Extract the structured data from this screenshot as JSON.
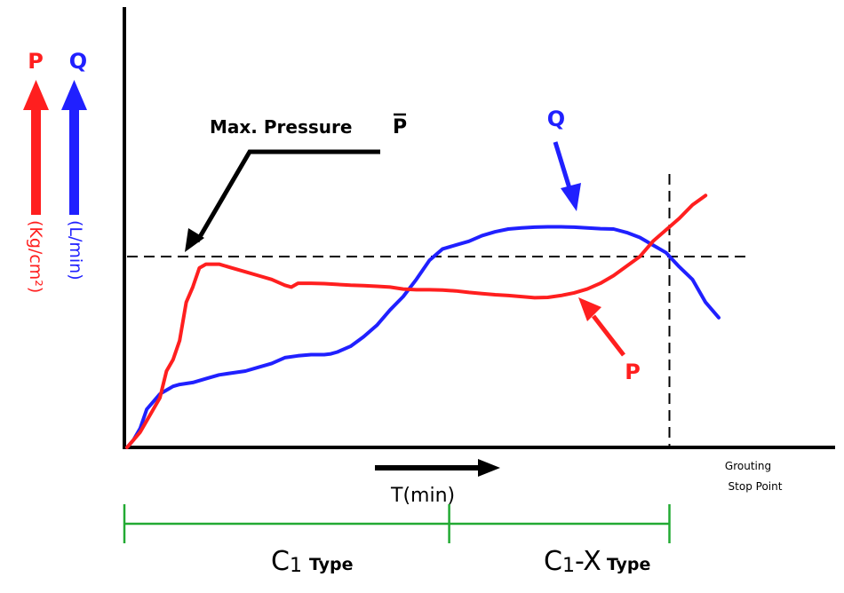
{
  "chart_data": {
    "type": "line",
    "title": "",
    "xlabel": "T(min)",
    "x_range": [
      0,
      100
    ],
    "y_range": [
      0,
      100
    ],
    "series": [
      {
        "name": "Q",
        "unit_label": "(L/min)",
        "color": "#2020ff",
        "points": [
          [
            0,
            0
          ],
          [
            1,
            2
          ],
          [
            2,
            5
          ],
          [
            3,
            10
          ],
          [
            4,
            12
          ],
          [
            5,
            14
          ],
          [
            6,
            15
          ],
          [
            7,
            16
          ],
          [
            8,
            16.5
          ],
          [
            10,
            17
          ],
          [
            12,
            18
          ],
          [
            14,
            19
          ],
          [
            16,
            19.5
          ],
          [
            18,
            20
          ],
          [
            20,
            21
          ],
          [
            22,
            22
          ],
          [
            24,
            23.5
          ],
          [
            26,
            24
          ],
          [
            28,
            24.3
          ],
          [
            30,
            24.3
          ],
          [
            31,
            24.5
          ],
          [
            32,
            25
          ],
          [
            34,
            26.5
          ],
          [
            36,
            29
          ],
          [
            38,
            32
          ],
          [
            40,
            36
          ],
          [
            42,
            39.5
          ],
          [
            44,
            44
          ],
          [
            46,
            49
          ],
          [
            48,
            52
          ],
          [
            50,
            53
          ],
          [
            52,
            54
          ],
          [
            54,
            55.5
          ],
          [
            56,
            56.5
          ],
          [
            58,
            57.2
          ],
          [
            60,
            57.5
          ],
          [
            62,
            57.7
          ],
          [
            64,
            57.8
          ],
          [
            66,
            57.8
          ],
          [
            68,
            57.7
          ],
          [
            70,
            57.5
          ],
          [
            72,
            57.3
          ],
          [
            74,
            57.2
          ],
          [
            76,
            56.3
          ],
          [
            78,
            55
          ],
          [
            80,
            53
          ],
          [
            82,
            51
          ],
          [
            84,
            47.3
          ],
          [
            86,
            44
          ],
          [
            88,
            38
          ],
          [
            90,
            34
          ]
        ]
      },
      {
        "name": "P",
        "unit_label": "(Kg/cm²)",
        "color": "#ff1f1f",
        "points": [
          [
            0,
            0
          ],
          [
            1,
            2
          ],
          [
            2,
            4
          ],
          [
            3,
            7
          ],
          [
            4,
            10
          ],
          [
            5,
            13
          ],
          [
            6,
            20
          ],
          [
            7,
            23
          ],
          [
            8,
            28
          ],
          [
            9,
            38
          ],
          [
            10,
            42
          ],
          [
            11,
            47
          ],
          [
            12,
            48
          ],
          [
            13,
            48
          ],
          [
            14,
            48
          ],
          [
            16,
            47
          ],
          [
            18,
            46
          ],
          [
            20,
            45
          ],
          [
            22,
            44
          ],
          [
            24,
            42.5
          ],
          [
            25,
            42
          ],
          [
            26,
            43
          ],
          [
            28,
            43
          ],
          [
            30,
            42.9
          ],
          [
            32,
            42.7
          ],
          [
            34,
            42.5
          ],
          [
            36,
            42.4
          ],
          [
            38,
            42.2
          ],
          [
            40,
            42
          ],
          [
            42,
            41.5
          ],
          [
            44,
            41.3
          ],
          [
            46,
            41.3
          ],
          [
            48,
            41.2
          ],
          [
            50,
            41
          ],
          [
            52,
            40.6
          ],
          [
            54,
            40.3
          ],
          [
            56,
            40
          ],
          [
            58,
            39.8
          ],
          [
            60,
            39.5
          ],
          [
            62,
            39.2
          ],
          [
            64,
            39.3
          ],
          [
            66,
            39.8
          ],
          [
            68,
            40.5
          ],
          [
            70,
            41.5
          ],
          [
            72,
            43
          ],
          [
            74,
            45
          ],
          [
            76,
            47.5
          ],
          [
            78,
            50
          ],
          [
            80,
            54
          ],
          [
            82,
            57
          ],
          [
            84,
            60
          ],
          [
            86,
            63.5
          ],
          [
            88,
            66
          ]
        ]
      }
    ],
    "reference_lines": {
      "horizontal_y": 50,
      "vertical_x": 82.5
    },
    "annotations": {
      "max_pressure": "Max. Pressure",
      "p_bar_symbol": "P",
      "q_curve_label": "Q",
      "p_curve_label": "P",
      "stop_line1": "Grouting",
      "stop_line2": "Stop Point",
      "axis_p": "P",
      "axis_q": "Q"
    },
    "phases": [
      {
        "main": "C",
        "sub": "1",
        "suffix": "Type",
        "x_start": 0,
        "x_end": 49
      },
      {
        "main": "C",
        "sub": "1",
        "mid": "-X",
        "suffix": "Type",
        "x_start": 49,
        "x_end": 82.5
      }
    ],
    "colors": {
      "axis": "#000000",
      "phase_bar": "#22aa33",
      "p_color": "#ff1f1f",
      "q_color": "#2020ff"
    }
  }
}
